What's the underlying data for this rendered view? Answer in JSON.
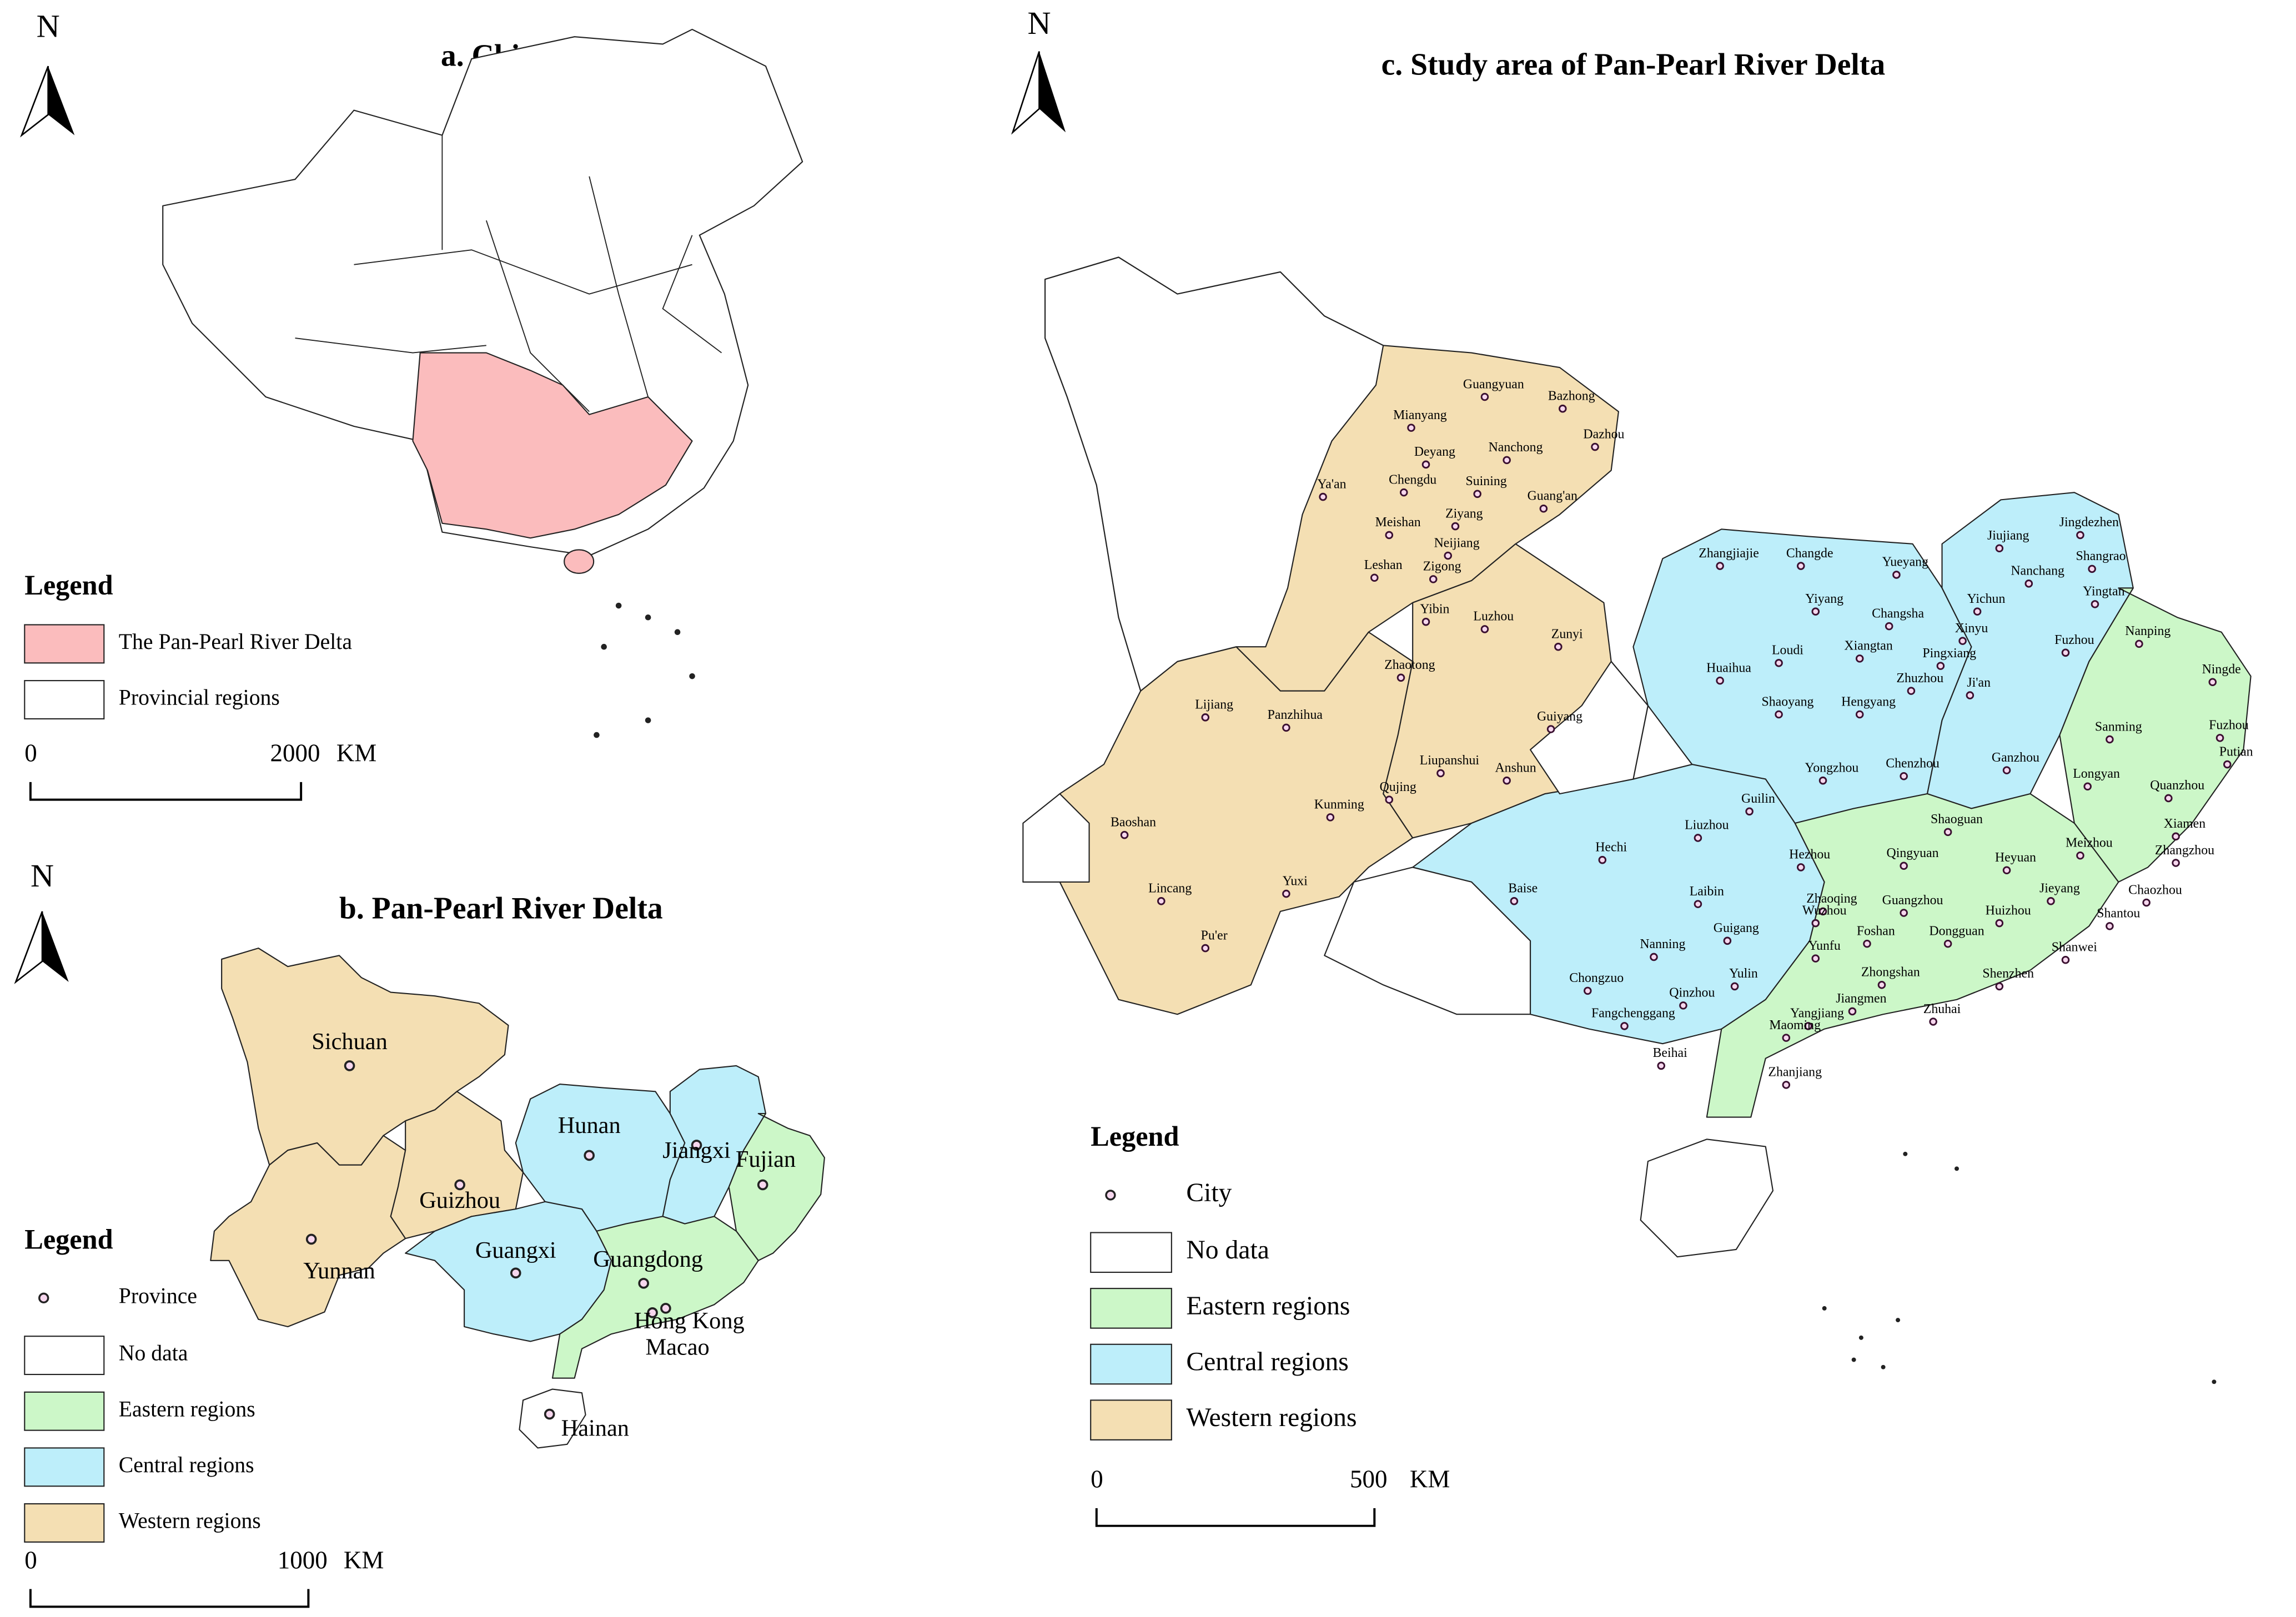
{
  "panel_a": {
    "north": "N",
    "title": "a. China",
    "legend": {
      "title": "Legend",
      "items": [
        {
          "label": "The Pan-Pearl River Delta",
          "color": "#fbbcbd"
        },
        {
          "label": "Provincial regions",
          "color": "#ffffff"
        }
      ]
    },
    "scale": {
      "start": 0,
      "end": 2000,
      "unit": "KM"
    }
  },
  "panel_b": {
    "north": "N",
    "title": "b. Pan-Pearl River Delta",
    "provinces": [
      "Sichuan",
      "Yunnan",
      "Guizhou",
      "Hunan",
      "Jiangxi",
      "Fujian",
      "Guangxi",
      "Guangdong",
      "Hong Kong",
      "Macao",
      "Hainan"
    ],
    "legend": {
      "title": "Legend",
      "symbol": "Province",
      "items": [
        {
          "label": "No data",
          "color": "#ffffff"
        },
        {
          "label": "Eastern regions",
          "color": "#ccf7c8"
        },
        {
          "label": "Central regions",
          "color": "#bdeefa"
        },
        {
          "label": "Western regions",
          "color": "#f4dfb3"
        }
      ]
    },
    "scale": {
      "start": 0,
      "end": 1000,
      "unit": "KM"
    }
  },
  "panel_c": {
    "north": "N",
    "title": "c. Study area of Pan-Pearl River Delta",
    "legend": {
      "title": "Legend",
      "symbol": "City",
      "items": [
        {
          "label": "No data",
          "color": "#ffffff"
        },
        {
          "label": "Eastern regions",
          "color": "#ccf7c8"
        },
        {
          "label": "Central regions",
          "color": "#bdeefa"
        },
        {
          "label": "Western regions",
          "color": "#f4dfb3"
        }
      ]
    },
    "scale": {
      "start": 0,
      "end": 500,
      "unit": "KM"
    },
    "cities": [
      "Guangyuan",
      "Bazhong",
      "Mianyang",
      "Dazhou",
      "Deyang",
      "Nanchong",
      "Chengdu",
      "Suining",
      "Guang'an",
      "Ziyang",
      "Ya'an",
      "Meishan",
      "Neijiang",
      "Leshan",
      "Zigong",
      "Yibin",
      "Luzhou",
      "Zunyi",
      "Zhaotong",
      "Lijiang",
      "Panzhihua",
      "Guiyang",
      "Liupanshui",
      "Anshun",
      "Qujing",
      "Kunming",
      "Baoshan",
      "Yuxi",
      "Lincang",
      "Pu'er",
      "Zhangjiajie",
      "Changde",
      "Yueyang",
      "Jiujiang",
      "Jingdezhen",
      "Shangrao",
      "Nanchang",
      "Yingtan",
      "Yiyang",
      "Changsha",
      "Yichun",
      "Xinyu",
      "Fuzhou",
      "Loudi",
      "Xiangtan",
      "Pingxiang",
      "Huaihua",
      "Zhuzhou",
      "Ji'an",
      "Shaoyang",
      "Hengyang",
      "Yongzhou",
      "Chenzhou",
      "Ganzhou",
      "Guilin",
      "Liuzhou",
      "Hechi",
      "Hezhou",
      "Baise",
      "Laibin",
      "Wuzhou",
      "Nanning",
      "Guigang",
      "Chongzuo",
      "Yulin",
      "Qinzhou",
      "Fangchenggang",
      "Beihai",
      "Nanping",
      "Ningde",
      "Fuzhou",
      "Sanming",
      "Putian",
      "Longyan",
      "Quanzhou",
      "Xiamen",
      "Zhangzhou",
      "Shaoguan",
      "Meizhou",
      "Qingyuan",
      "Heyuan",
      "Chaozhou",
      "Jieyang",
      "Shantou",
      "Zhaoqing",
      "Guangzhou",
      "Huizhou",
      "Foshan",
      "Dongguan",
      "Shanwei",
      "Yunfu",
      "Zhongshan",
      "Shenzhen",
      "Jiangmen",
      "Zhuhai",
      "Yangjiang",
      "Maoming",
      "Zhanjiang"
    ]
  }
}
